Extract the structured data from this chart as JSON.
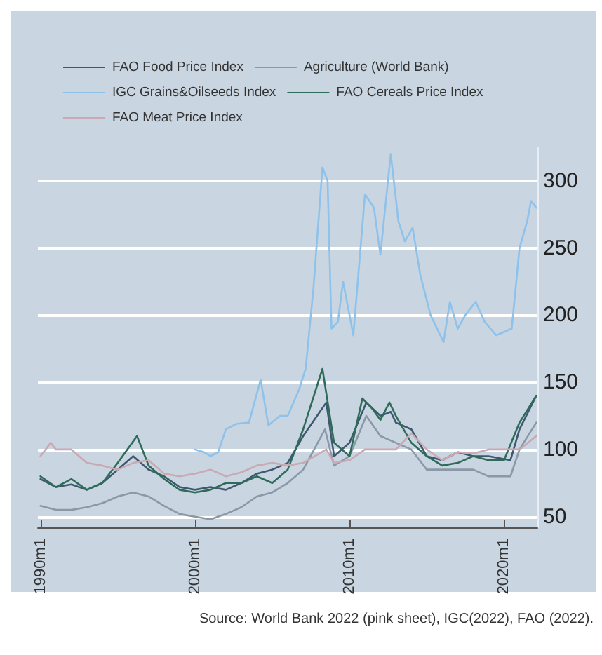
{
  "chart_data": {
    "type": "line",
    "annotations": [
      "Source: World Bank 2022 (pink sheet), IGC(2022), FAO (2022)."
    ],
    "xlim": [
      "1989-11",
      "2022-03"
    ],
    "xticks": [
      {
        "value": "1990-01",
        "label": "1990m1"
      },
      {
        "value": "2000-01",
        "label": "2000m1"
      },
      {
        "value": "2010-01",
        "label": "2010m1"
      },
      {
        "value": "2020-01",
        "label": "2020m1"
      }
    ],
    "ylim": [
      42,
      325
    ],
    "yticks": [
      50,
      100,
      150,
      200,
      250,
      300
    ],
    "grid": "y",
    "legend": "top",
    "marker": "none",
    "line_style": "solid",
    "series": [
      {
        "name": "FAO Food Price Index",
        "color": "#3e5870",
        "x": [
          "1990-01",
          "1991-01",
          "1992-01",
          "1993-01",
          "1994-01",
          "1995-01",
          "1996-01",
          "1997-01",
          "1998-01",
          "1999-01",
          "2000-01",
          "2001-01",
          "2002-01",
          "2003-01",
          "2004-01",
          "2005-01",
          "2006-01",
          "2007-01",
          "2008-07",
          "2009-01",
          "2010-01",
          "2011-02",
          "2012-01",
          "2012-09",
          "2013-01",
          "2014-01",
          "2015-01",
          "2016-01",
          "2017-01",
          "2018-01",
          "2019-01",
          "2020-06",
          "2021-01",
          "2022-02"
        ],
        "values": [
          78,
          72,
          74,
          70,
          75,
          85,
          95,
          85,
          80,
          72,
          70,
          72,
          70,
          75,
          82,
          85,
          90,
          110,
          135,
          95,
          105,
          135,
          125,
          128,
          120,
          115,
          95,
          92,
          98,
          95,
          95,
          92,
          115,
          140
        ]
      },
      {
        "name": "Agriculture (World Bank)",
        "color": "#8b98a6",
        "x": [
          "1990-01",
          "1991-01",
          "1992-01",
          "1993-01",
          "1994-01",
          "1995-01",
          "1996-01",
          "1997-01",
          "1998-01",
          "1999-01",
          "2000-01",
          "2001-01",
          "2002-01",
          "2003-01",
          "2004-01",
          "2005-01",
          "2006-01",
          "2007-01",
          "2008-06",
          "2009-01",
          "2010-01",
          "2011-02",
          "2012-01",
          "2013-01",
          "2014-01",
          "2015-01",
          "2016-01",
          "2017-01",
          "2018-01",
          "2019-01",
          "2020-06",
          "2021-01",
          "2022-02"
        ],
        "values": [
          58,
          55,
          55,
          57,
          60,
          65,
          68,
          65,
          58,
          52,
          50,
          48,
          52,
          57,
          65,
          68,
          75,
          85,
          115,
          88,
          95,
          125,
          110,
          105,
          100,
          85,
          85,
          85,
          85,
          80,
          80,
          100,
          120
        ]
      },
      {
        "name": "IGC Grains&Oilseeds Index",
        "color": "#8ec2ea",
        "x": [
          "2000-01",
          "2000-08",
          "2001-01",
          "2001-07",
          "2002-01",
          "2002-09",
          "2003-07",
          "2004-04",
          "2004-10",
          "2005-07",
          "2006-01",
          "2006-10",
          "2007-03",
          "2007-09",
          "2008-04",
          "2008-08",
          "2008-11",
          "2009-04",
          "2009-08",
          "2010-01",
          "2010-04",
          "2011-01",
          "2011-08",
          "2012-01",
          "2012-09",
          "2013-03",
          "2013-08",
          "2014-02",
          "2014-08",
          "2015-04",
          "2016-02",
          "2016-07",
          "2017-01",
          "2017-07",
          "2018-03",
          "2018-10",
          "2019-07",
          "2020-07",
          "2021-01",
          "2021-07",
          "2021-10",
          "2022-02"
        ],
        "values": [
          100,
          98,
          95,
          98,
          115,
          119,
          120,
          152,
          118,
          125,
          125,
          145,
          160,
          220,
          310,
          300,
          190,
          195,
          225,
          200,
          185,
          290,
          280,
          245,
          320,
          270,
          255,
          265,
          230,
          200,
          180,
          210,
          190,
          200,
          210,
          195,
          185,
          190,
          250,
          270,
          285,
          280
        ]
      },
      {
        "name": "FAO Cereals Price Index",
        "color": "#2e6b58",
        "x": [
          "1990-01",
          "1991-01",
          "1992-01",
          "1993-01",
          "1994-01",
          "1995-01",
          "1996-04",
          "1997-01",
          "1998-01",
          "1999-01",
          "2000-01",
          "2001-01",
          "2002-01",
          "2003-01",
          "2004-01",
          "2005-01",
          "2006-01",
          "2007-01",
          "2008-04",
          "2009-01",
          "2010-01",
          "2010-11",
          "2011-07",
          "2012-01",
          "2012-08",
          "2013-01",
          "2014-01",
          "2015-01",
          "2016-01",
          "2017-01",
          "2018-01",
          "2019-01",
          "2020-01",
          "2021-01",
          "2022-02"
        ],
        "values": [
          80,
          72,
          78,
          70,
          75,
          90,
          110,
          88,
          78,
          70,
          68,
          70,
          75,
          75,
          80,
          75,
          85,
          115,
          160,
          105,
          95,
          138,
          130,
          122,
          135,
          125,
          105,
          95,
          88,
          90,
          95,
          92,
          92,
          120,
          140
        ]
      },
      {
        "name": "FAO Meat Price Index",
        "color": "#c9a9b2",
        "x": [
          "1990-01",
          "1990-09",
          "1991-01",
          "1992-01",
          "1993-01",
          "1994-01",
          "1995-01",
          "1996-01",
          "1997-01",
          "1998-01",
          "1999-01",
          "2000-01",
          "2001-01",
          "2002-01",
          "2003-01",
          "2004-01",
          "2005-01",
          "2006-01",
          "2007-01",
          "2008-07",
          "2009-01",
          "2010-01",
          "2011-01",
          "2012-01",
          "2013-01",
          "2014-01",
          "2015-01",
          "2016-01",
          "2017-01",
          "2018-01",
          "2019-01",
          "2020-01",
          "2021-01",
          "2022-02"
        ],
        "values": [
          95,
          105,
          100,
          100,
          90,
          88,
          85,
          90,
          92,
          82,
          80,
          82,
          85,
          80,
          83,
          88,
          90,
          88,
          90,
          100,
          90,
          92,
          100,
          100,
          100,
          112,
          100,
          92,
          98,
          97,
          100,
          100,
          100,
          110
        ]
      }
    ]
  }
}
